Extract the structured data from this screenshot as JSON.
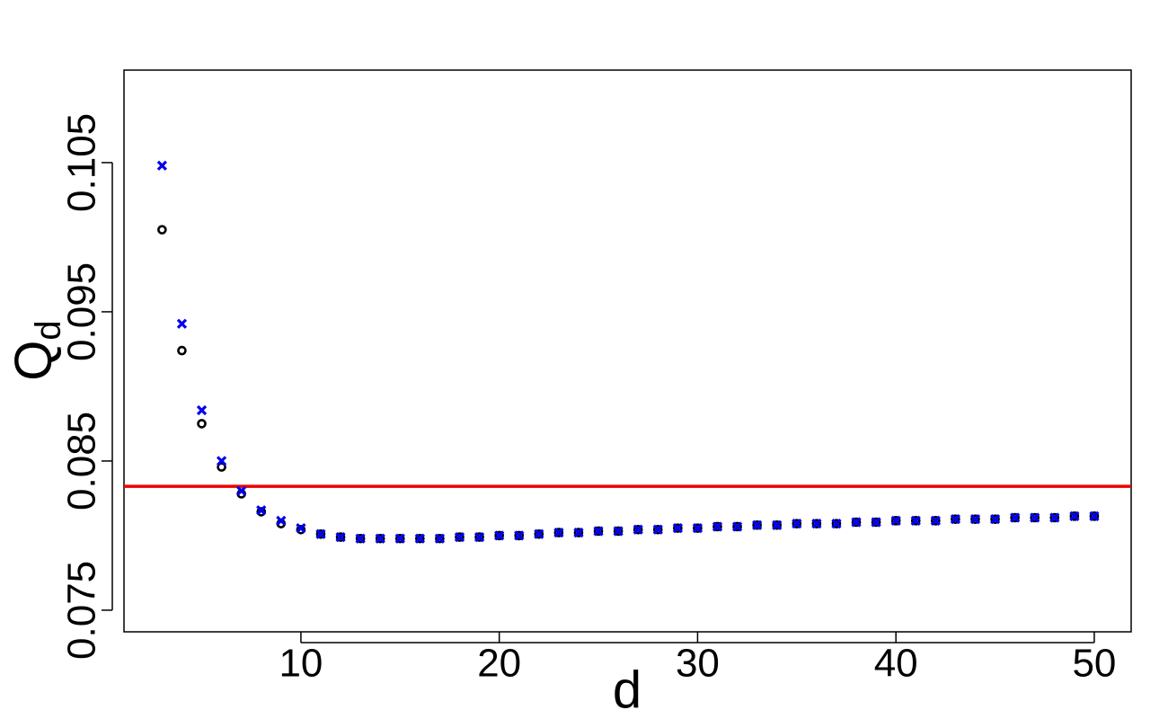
{
  "chart_data": {
    "type": "scatter",
    "x_label": "d",
    "y_label": {
      "main": "Q",
      "sub": "d"
    },
    "x": [
      3,
      4,
      5,
      6,
      7,
      8,
      9,
      10,
      11,
      12,
      13,
      14,
      15,
      16,
      17,
      18,
      19,
      20,
      21,
      22,
      23,
      24,
      25,
      26,
      27,
      28,
      29,
      30,
      31,
      32,
      33,
      34,
      35,
      36,
      37,
      38,
      39,
      40,
      41,
      42,
      43,
      44,
      45,
      46,
      47,
      48,
      49,
      50
    ],
    "series": [
      {
        "color": "#000000",
        "marker": "circle",
        "values": [
          0.1005,
          0.0924,
          0.0875,
          0.0846,
          0.0828,
          0.0816,
          0.0808,
          0.0804,
          0.0801,
          0.0799,
          0.0798,
          0.0798,
          0.0798,
          0.0798,
          0.0798,
          0.0799,
          0.0799,
          0.08,
          0.08,
          0.0801,
          0.0802,
          0.0802,
          0.0803,
          0.0803,
          0.0804,
          0.0804,
          0.0805,
          0.0805,
          0.0806,
          0.0806,
          0.0807,
          0.0807,
          0.0808,
          0.0808,
          0.0808,
          0.0809,
          0.0809,
          0.081,
          0.081,
          0.081,
          0.0811,
          0.0811,
          0.0811,
          0.0812,
          0.0812,
          0.0812,
          0.0813,
          0.0813
        ]
      },
      {
        "color": "#0000ee",
        "marker": "x",
        "values": [
          0.1048,
          0.0942,
          0.0884,
          0.085,
          0.083,
          0.0817,
          0.081,
          0.0805,
          0.0801,
          0.0799,
          0.0798,
          0.0798,
          0.0798,
          0.0798,
          0.0798,
          0.0799,
          0.0799,
          0.08,
          0.08,
          0.0801,
          0.0802,
          0.0802,
          0.0803,
          0.0803,
          0.0804,
          0.0804,
          0.0805,
          0.0805,
          0.0806,
          0.0806,
          0.0807,
          0.0807,
          0.0808,
          0.0808,
          0.0808,
          0.0809,
          0.0809,
          0.081,
          0.081,
          0.081,
          0.0811,
          0.0811,
          0.0811,
          0.0812,
          0.0812,
          0.0812,
          0.0813,
          0.0813
        ]
      }
    ],
    "hline": {
      "value": 0.0833,
      "color": "#ee0000"
    },
    "xlim": [
      1.08,
      51.86
    ],
    "xticks": [
      10,
      20,
      30,
      40,
      50
    ],
    "ylim": [
      0.07355,
      0.1112
    ],
    "yticks": [
      0.075,
      0.085,
      0.095,
      0.105
    ],
    "grid": false
  }
}
